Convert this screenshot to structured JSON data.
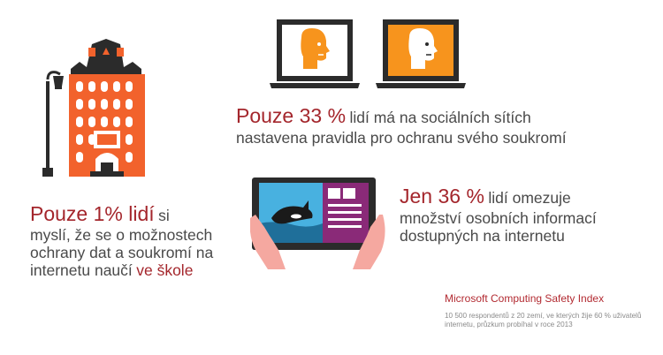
{
  "fact_laptops": {
    "highlight": "Pouze 33 %",
    "text_1": "lidí má na sociálních sítích",
    "text_2": "nastavena pravidla pro ochranu svého soukromí"
  },
  "fact_tablet": {
    "highlight": "Jen 36 %",
    "text_1": "lidí omezuje",
    "text_2": "množství osobních informací",
    "text_3": "dostupných na internetu"
  },
  "fact_building": {
    "highlight": "Pouze 1% lidí",
    "text_1": "si",
    "text_2": "myslí, že se o možnostech",
    "text_3": "ochrany dat a soukromí na",
    "text_4": "internetu naučí",
    "highlight_end": "ve škole"
  },
  "source": {
    "title": "Microsoft Computing Safety Index",
    "description_1": "10 500 respondentů z 20 zemí, ve kterých žije 60 % uživatelů",
    "description_2": "internetu, průzkum probíhal v roce 2013"
  },
  "colors": {
    "accent": "#a4262c",
    "orange": "#f7941d",
    "building_orange": "#f2622c",
    "dark": "#2b2b2b",
    "sky": "#48b1e0",
    "purple": "#8a2a78"
  },
  "icons": [
    "building-icon",
    "street-lamp-icon",
    "laptop-icon",
    "face-icon",
    "tablet-icon",
    "orca-icon",
    "hands-icon"
  ]
}
